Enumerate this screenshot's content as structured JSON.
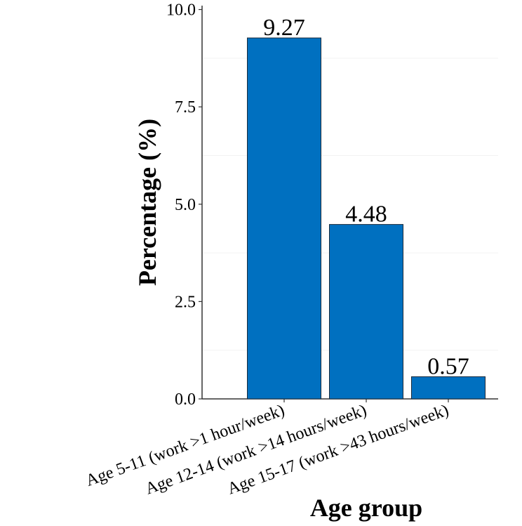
{
  "chart_data": {
    "type": "bar",
    "categories": [
      "Age 5-11 (work >1 hour/week)",
      "Age 12-14 (work >14 hours/week)",
      "Age 15-17 (work >43 hours/week)"
    ],
    "values": [
      9.27,
      4.48,
      0.57
    ],
    "data_labels": [
      "9.27",
      "4.48",
      "0.57"
    ],
    "title": "",
    "xlabel": "Age group",
    "ylabel": "Percentage (%)",
    "ylim": [
      0,
      10.1
    ],
    "yticks": [
      0.0,
      2.5,
      5.0,
      7.5,
      10.0
    ],
    "ytick_labels": [
      "0.0",
      "2.5",
      "5.0",
      "7.5",
      "10.0"
    ],
    "grid": "minor horizontal, faint",
    "legend": "none",
    "bar_color": "#0070c0"
  }
}
